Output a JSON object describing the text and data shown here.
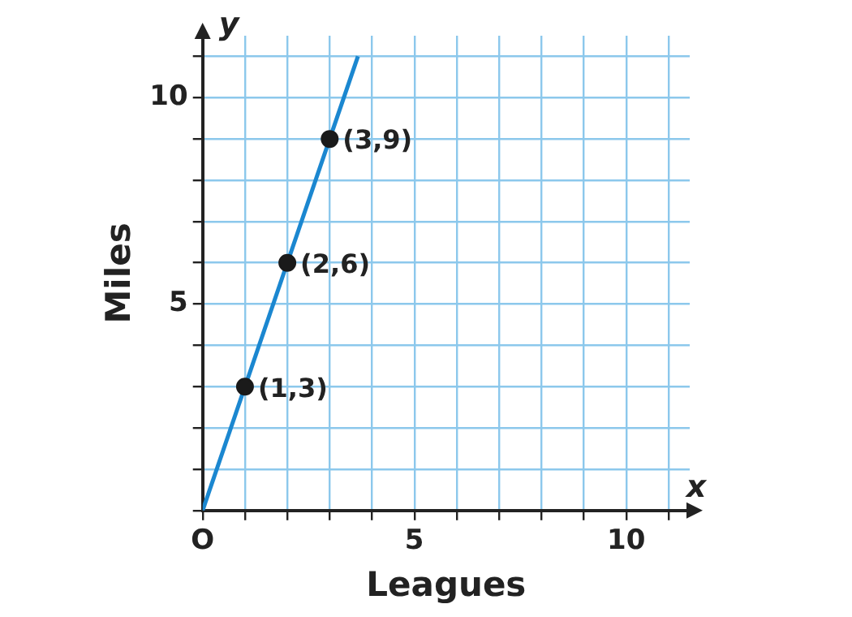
{
  "chart_data": {
    "type": "line",
    "xlabel": "Leagues",
    "ylabel": "Miles",
    "series": [
      {
        "color": "#1b87d0",
        "x": [
          0,
          3.667
        ],
        "values": [
          0,
          11
        ],
        "marker": "none"
      },
      {
        "type": "scatter",
        "color": "#1a1a1a",
        "x": [
          1,
          2,
          3
        ],
        "values": [
          3,
          6,
          9
        ],
        "marker": "circle"
      }
    ],
    "xlim": [
      0,
      11.5
    ],
    "ylim": [
      0,
      11.5
    ],
    "xticks": [
      {
        "value": 0,
        "label": "O"
      },
      {
        "value": 1,
        "label": null
      },
      {
        "value": 2,
        "label": null
      },
      {
        "value": 3,
        "label": null
      },
      {
        "value": 4,
        "label": null
      },
      5,
      {
        "value": 6,
        "label": null
      },
      {
        "value": 7,
        "label": null
      },
      {
        "value": 8,
        "label": null
      },
      {
        "value": 9,
        "label": null
      },
      10,
      {
        "value": 11,
        "label": null
      }
    ],
    "yticks": [
      {
        "value": 0,
        "label": null
      },
      {
        "value": 1,
        "label": null
      },
      {
        "value": 2,
        "label": null
      },
      {
        "value": 3,
        "label": null
      },
      {
        "value": 4,
        "label": null
      },
      5,
      {
        "value": 6,
        "label": null
      },
      {
        "value": 7,
        "label": null
      },
      {
        "value": 8,
        "label": null
      },
      {
        "value": 9,
        "label": null
      },
      10,
      {
        "value": 11,
        "label": null
      }
    ],
    "grid": true,
    "legend": false,
    "annotations": [
      {
        "text": "(1,3)",
        "x": 1,
        "y": 3
      },
      {
        "text": "(2,6)",
        "x": 2,
        "y": 6
      },
      {
        "text": "(3,9)",
        "x": 3,
        "y": 9
      },
      "x",
      "y"
    ]
  }
}
